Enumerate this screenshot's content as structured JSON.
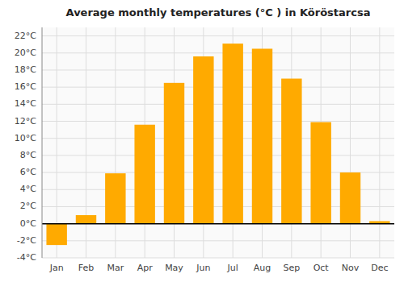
{
  "chart_data": {
    "type": "bar",
    "title": "Average monthly temperatures (°C ) in Köröstarcsa",
    "categories": [
      "Jan",
      "Feb",
      "Mar",
      "Apr",
      "May",
      "Jun",
      "Jul",
      "Aug",
      "Sep",
      "Oct",
      "Nov",
      "Dec"
    ],
    "values": [
      -2.5,
      1.0,
      5.9,
      11.6,
      16.5,
      19.6,
      21.1,
      20.5,
      17.0,
      11.9,
      6.0,
      0.3
    ],
    "color": "#FFAA00",
    "ylim": [
      -4,
      23
    ],
    "yticks": [
      {
        "value": -4,
        "label": "-4°C"
      },
      {
        "value": -2,
        "label": "-2°C"
      },
      {
        "value": 0,
        "label": "0°C"
      },
      {
        "value": 2,
        "label": "2°C"
      },
      {
        "value": 4,
        "label": "4°C"
      },
      {
        "value": 6,
        "label": "6°C"
      },
      {
        "value": 8,
        "label": "8°C"
      },
      {
        "value": 10,
        "label": "10°C"
      },
      {
        "value": 12,
        "label": "12°C"
      },
      {
        "value": 14,
        "label": "14°C"
      },
      {
        "value": 16,
        "label": "16°C"
      },
      {
        "value": 18,
        "label": "18°C"
      },
      {
        "value": 20,
        "label": "20°C"
      },
      {
        "value": 22,
        "label": "22°C"
      }
    ],
    "grid": true
  }
}
